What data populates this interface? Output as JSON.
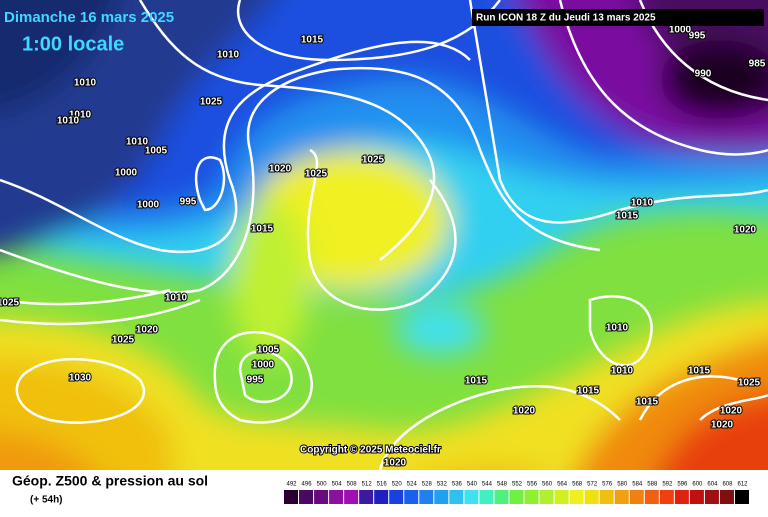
{
  "header": {
    "date": "Dimanche 16 mars 2025",
    "time": "1:00 locale",
    "run": "Run ICON 18 Z du Jeudi 13 mars 2025"
  },
  "copyright": "Copyright © 2025 Meteociel.fr",
  "footer": {
    "title": "Géop. Z500 & pression au sol",
    "lead": "(+ 54h)"
  },
  "legend": {
    "labels": [
      492,
      496,
      500,
      504,
      508,
      512,
      516,
      520,
      524,
      528,
      532,
      536,
      540,
      544,
      548,
      552,
      556,
      560,
      564,
      568,
      572,
      576,
      580,
      584,
      588,
      592,
      596,
      600,
      604,
      608,
      612
    ]
  },
  "isobar_labels": [
    "1015",
    "1010",
    "1025",
    "1010",
    "1010",
    "1010",
    "1010",
    "1005",
    "1000",
    "1000",
    "995",
    "1020",
    "1025",
    "1025",
    "1015",
    "1010",
    "1020",
    "1025",
    "1030",
    "1025",
    "1005",
    "1000",
    "995",
    "1015",
    "1020",
    "1015",
    "1010",
    "1010",
    "1015",
    "1025",
    "1015",
    "1020",
    "1020",
    "1010",
    "1015",
    "1020",
    "995",
    "990",
    "985",
    "1000",
    "1020"
  ]
}
